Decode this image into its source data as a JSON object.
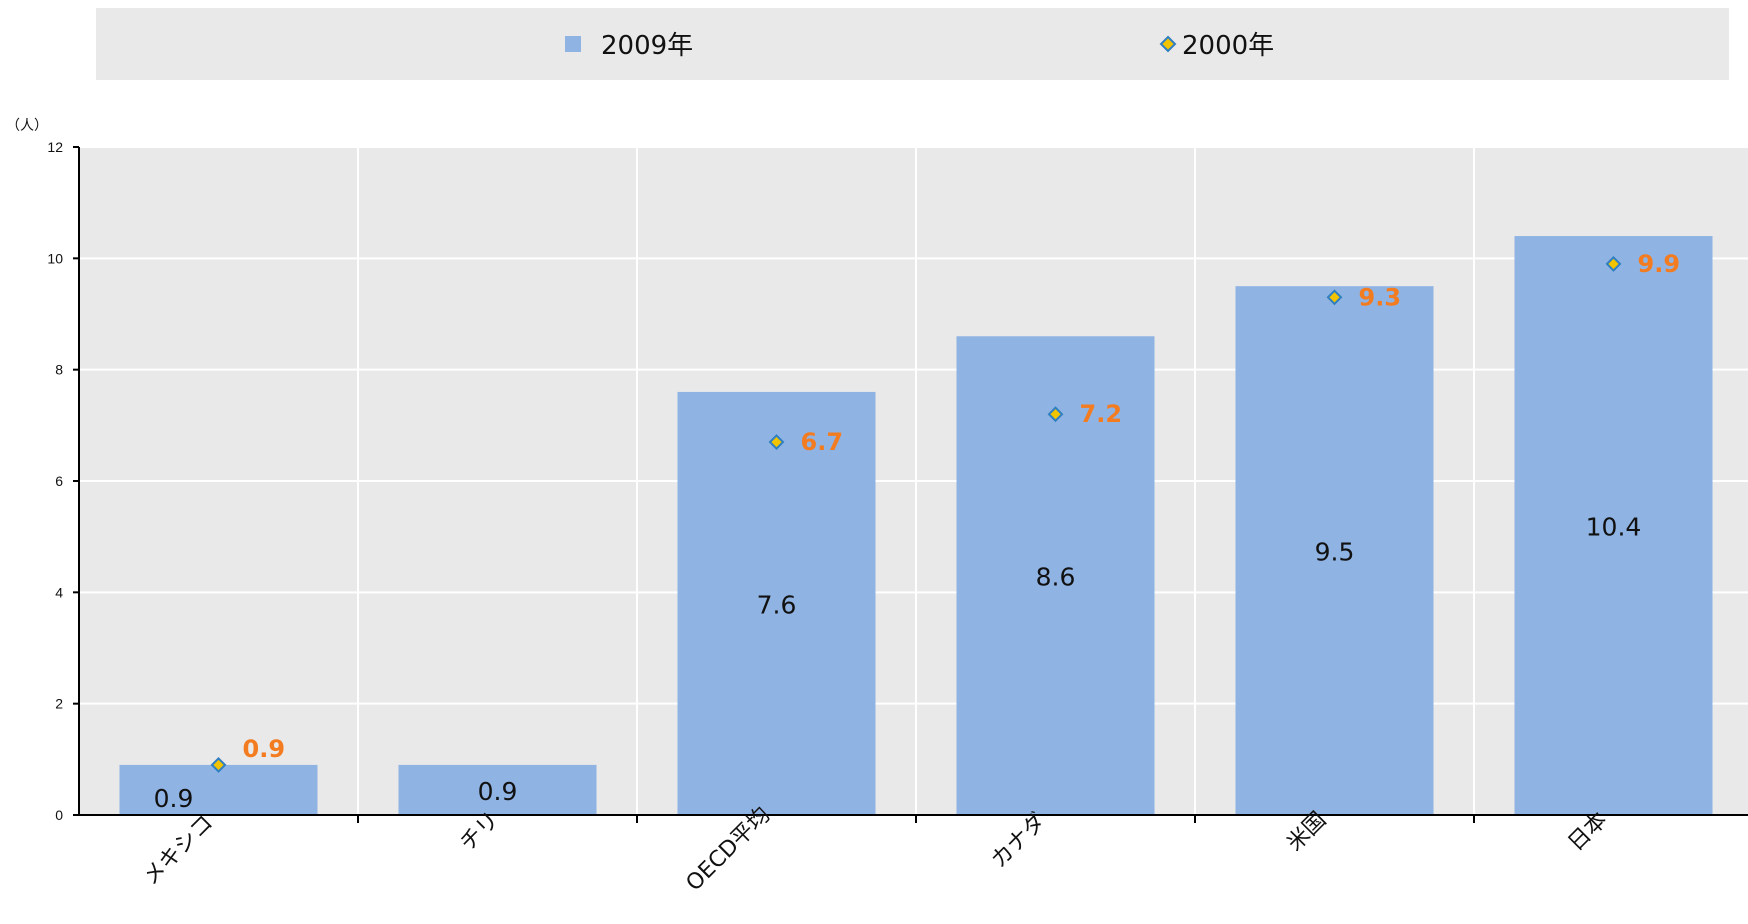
{
  "chart_data": {
    "type": "bar",
    "categories": [
      "メキシコ",
      "チリ",
      "OECD平均",
      "カナダ",
      "米国",
      "日本"
    ],
    "series": [
      {
        "name": "2009年",
        "type": "bar",
        "values": [
          0.9,
          0.9,
          7.6,
          8.6,
          9.5,
          10.4
        ],
        "labels": [
          "0.9",
          "0.9",
          "7.6",
          "8.6",
          "9.5",
          "10.4"
        ]
      },
      {
        "name": "2000年",
        "type": "scatter",
        "values": [
          0.9,
          null,
          6.7,
          7.2,
          9.3,
          9.9
        ],
        "labels": [
          "0.9",
          "",
          "6.7",
          "7.2",
          "9.3",
          "9.9"
        ]
      }
    ],
    "ylabel": "（人）",
    "ylim": [
      0,
      12
    ],
    "yticks": [
      0,
      2,
      4,
      6,
      8,
      10,
      12
    ],
    "ytick_labels": [
      "0",
      "2",
      "4",
      "6",
      "8",
      "10",
      "12"
    ],
    "grid": true,
    "legend_position": "top-center",
    "colors": {
      "bar": "#8fb3e3",
      "marker_fill": "#f2c300",
      "marker_stroke": "#2f7fc1",
      "point_label": "#f47c20",
      "plot_background": "#e9e9e9",
      "legend_background": "#e9e9e9",
      "grid": "#ffffff",
      "axis": "#000000"
    }
  }
}
